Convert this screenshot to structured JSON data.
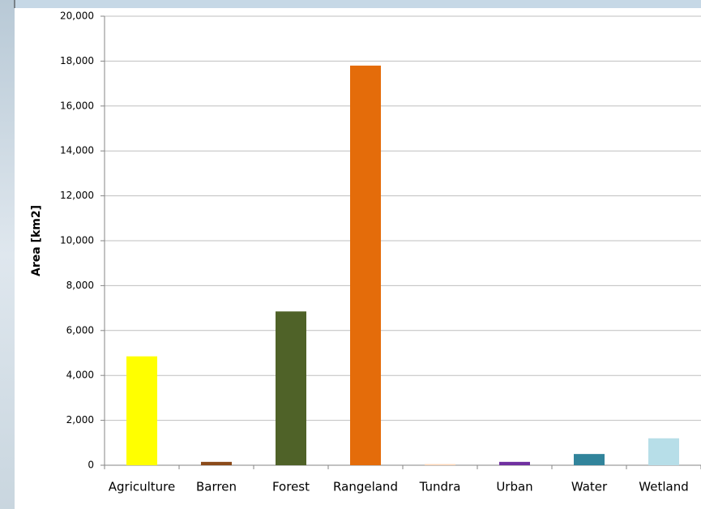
{
  "chart_data": {
    "type": "bar",
    "y_label": "Area [km2]",
    "categories": [
      "Agriculture",
      "Barren",
      "Forest",
      "Rangeland",
      "Tundra",
      "Urban",
      "Water",
      "Wetland"
    ],
    "values": [
      4850,
      150,
      6850,
      17800,
      50,
      150,
      500,
      1200
    ],
    "colors": [
      "#ffff00",
      "#8b4a1a",
      "#4f6228",
      "#e46c0a",
      "#fcd5b5",
      "#7030a0",
      "#31849b",
      "#b7dee8"
    ],
    "ylim": [
      0,
      20000
    ],
    "yticks": [
      0,
      {
        "value": 2000,
        "label": "2,000"
      },
      {
        "value": 4000,
        "label": "4,000"
      },
      {
        "value": 6000,
        "label": "6,000"
      },
      {
        "value": 8000,
        "label": "8,000"
      },
      {
        "value": 10000,
        "label": "10,000"
      },
      {
        "value": 12000,
        "label": "12,000"
      },
      {
        "value": 14000,
        "label": "14,000"
      },
      {
        "value": 16000,
        "label": "16,000"
      },
      {
        "value": 18000,
        "label": "18,000"
      },
      {
        "value": 20000,
        "label": "20,000"
      }
    ],
    "grid": true
  }
}
